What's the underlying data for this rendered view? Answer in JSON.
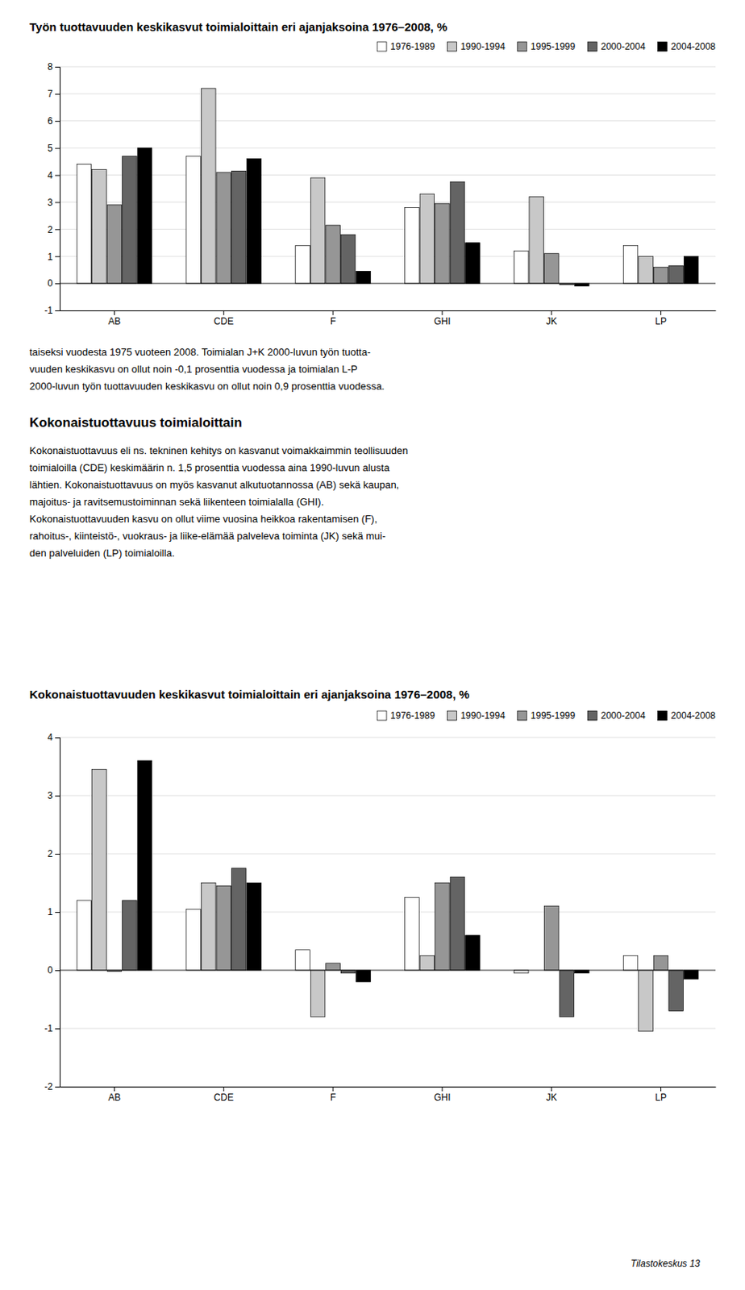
{
  "chart_data": [
    {
      "type": "bar",
      "title": "Työn tuottavuuden keskikasvut toimialoittain eri ajanjaksoina 1976–2008, %",
      "categories": [
        "AB",
        "CDE",
        "F",
        "GHI",
        "JK",
        "LP"
      ],
      "series": [
        {
          "name": "1976-1989",
          "color": "#ffffff",
          "values": [
            4.4,
            4.7,
            1.4,
            2.8,
            1.2,
            1.4
          ]
        },
        {
          "name": "1990-1994",
          "color": "#c8c8c8",
          "values": [
            4.2,
            7.2,
            3.9,
            3.3,
            3.2,
            1.0
          ]
        },
        {
          "name": "1995-1999",
          "color": "#969696",
          "values": [
            2.9,
            4.1,
            2.15,
            2.95,
            1.1,
            0.6
          ]
        },
        {
          "name": "2000-2004",
          "color": "#646464",
          "values": [
            4.7,
            4.15,
            1.8,
            3.75,
            -0.05,
            0.65
          ]
        },
        {
          "name": "2004-2008",
          "color": "#000000",
          "values": [
            5.0,
            4.6,
            0.45,
            1.5,
            -0.1,
            1.0
          ]
        }
      ],
      "ylim": [
        -1,
        8
      ],
      "yticks": [
        -1,
        0,
        1,
        2,
        3,
        4,
        5,
        6,
        7,
        8
      ],
      "grid": true,
      "legend": "top-right"
    },
    {
      "type": "bar",
      "title": "Kokonaistuottavuuden keskikasvut toimialoittain eri ajanjaksoina 1976–2008, %",
      "categories": [
        "AB",
        "CDE",
        "F",
        "GHI",
        "JK",
        "LP"
      ],
      "series": [
        {
          "name": "1976-1989",
          "color": "#ffffff",
          "values": [
            1.2,
            1.05,
            0.35,
            1.25,
            -0.05,
            0.25
          ]
        },
        {
          "name": "1990-1994",
          "color": "#c8c8c8",
          "values": [
            3.45,
            1.5,
            -0.8,
            0.25,
            0.0,
            -1.05
          ]
        },
        {
          "name": "1995-1999",
          "color": "#969696",
          "values": [
            -0.02,
            1.45,
            0.12,
            1.5,
            1.1,
            0.25
          ]
        },
        {
          "name": "2000-2004",
          "color": "#646464",
          "values": [
            1.2,
            1.75,
            -0.05,
            1.6,
            -0.8,
            -0.7
          ]
        },
        {
          "name": "2004-2008",
          "color": "#000000",
          "values": [
            3.6,
            1.5,
            -0.2,
            0.6,
            -0.05,
            -0.15
          ]
        }
      ],
      "ylim": [
        -2,
        4
      ],
      "yticks": [
        -2,
        -1,
        0,
        1,
        2,
        3,
        4
      ],
      "grid": true,
      "legend": "top-right"
    }
  ],
  "body_text": [
    "taiseksi vuodesta 1975 vuoteen 2008. Toimialan J+K 2000-luvun työn tuotta-",
    "vuuden keskikasvu on ollut noin -0,1 prosenttia vuodessa ja toimialan L-P",
    "2000-luvun työn tuottavuuden keskikasvu on ollut noin 0,9 prosenttia vuodessa."
  ],
  "section_heading": "Kokonaistuottavuus toimialoittain",
  "body_text2": [
    "Kokonaistuottavuus eli ns. tekninen kehitys on kasvanut voimakkaimmin teollisuuden",
    "toimialoilla (CDE) keskimäärin n. 1,5 prosenttia vuodessa aina 1990-luvun alusta",
    "lähtien. Kokonaistuottavuus on myös kasvanut alkutuotannossa (AB) sekä kaupan,",
    "majoitus- ja ravitsemustoiminnan sekä liikenteen toimialalla (GHI).",
    "Kokonaistuottavuuden kasvu on ollut viime vuosina heikkoa rakentamisen (F),",
    "rahoitus-, kiinteistö-, vuokraus- ja liike-elämää palveleva toiminta (JK) sekä mui-",
    "den palveluiden (LP) toimialoilla."
  ],
  "footer": "Tilastokeskus  13"
}
